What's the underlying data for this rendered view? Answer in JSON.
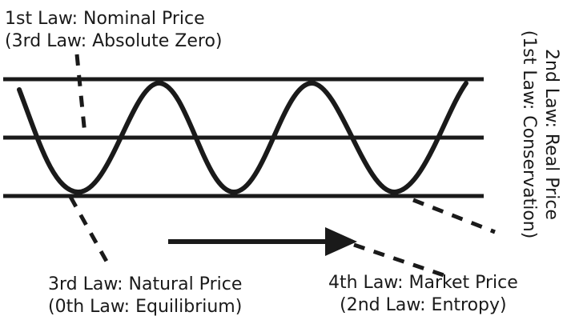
{
  "labels": {
    "nominal": {
      "line1": "1st Law: Nominal Price",
      "line2": "(3rd Law: Absolute Zero)"
    },
    "real": {
      "line1": "2nd Law: Real Price",
      "line2": "(1st Law: Conservation)"
    },
    "natural": {
      "line1": "3rd Law: Natural Price",
      "line2": "(0th Law: Equilibrium)"
    },
    "market": {
      "line1": "4th Law: Market Price",
      "line2": "(2nd Law: Entropy)"
    }
  },
  "colors": {
    "ink": "#1a1a1a",
    "background": "#ffffff"
  }
}
